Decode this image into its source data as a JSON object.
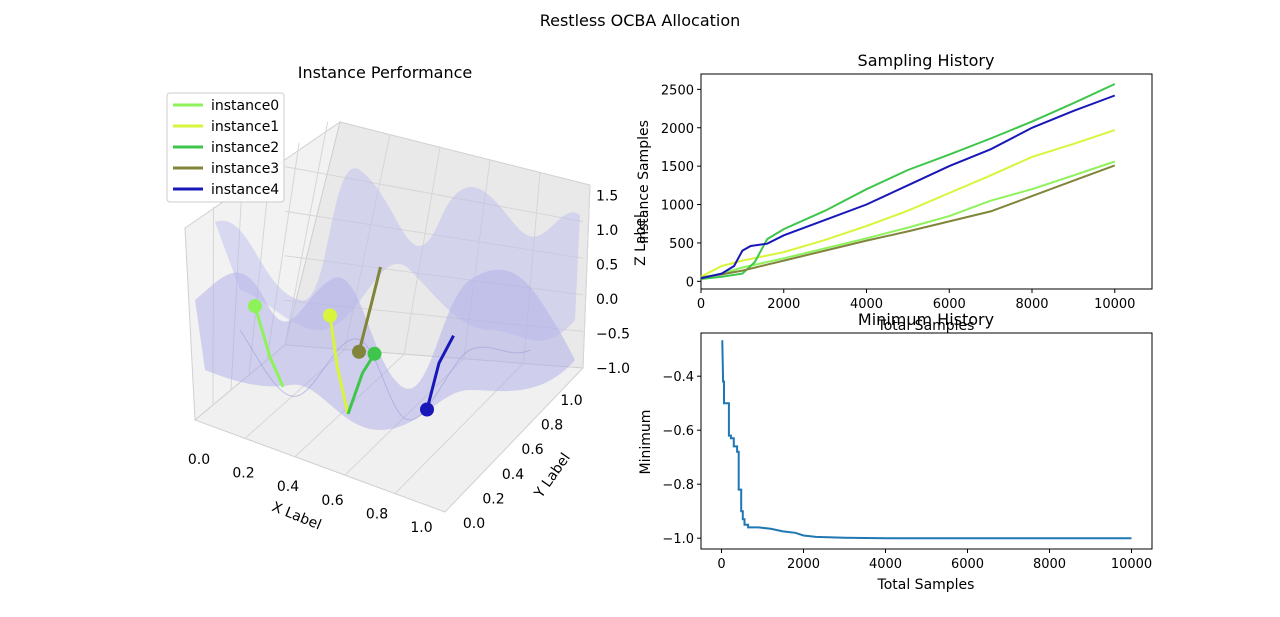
{
  "figure": {
    "suptitle": "Restless OCBA Allocation"
  },
  "chart_data": [
    {
      "type": "line",
      "panel": "3d-surface",
      "title": "Instance Performance",
      "xlabel": "X Label",
      "ylabel": "Y Label",
      "zlabel": "Z Label",
      "xticks": [
        "0.0",
        "0.2",
        "0.4",
        "0.6",
        "0.8",
        "1.0"
      ],
      "yticks": [
        "0.0",
        "0.2",
        "0.4",
        "0.6",
        "0.8",
        "1.0"
      ],
      "zticks": [
        "−1.0",
        "−0.5",
        "0.0",
        "0.5",
        "1.0",
        "1.5"
      ],
      "xlim": [
        0,
        1
      ],
      "ylim": [
        0,
        1
      ],
      "zlim": [
        -1.0,
        1.5
      ],
      "legend_position": "upper-left",
      "series": [
        {
          "name": "instance0",
          "color": "#8ef25a",
          "x": [
            0.06,
            0.12,
            0.18
          ],
          "y": [
            0.5,
            0.5,
            0.48
          ],
          "z": [
            -0.1,
            -0.6,
            -0.85
          ]
        },
        {
          "name": "instance1",
          "color": "#d8f53c",
          "x": [
            0.36,
            0.4,
            0.45
          ],
          "y": [
            0.5,
            0.47,
            0.45
          ],
          "z": [
            0.1,
            -0.4,
            -0.85
          ]
        },
        {
          "name": "instance2",
          "color": "#3ec54b",
          "x": [
            0.45,
            0.49,
            0.52
          ],
          "y": [
            0.45,
            0.5,
            0.55
          ],
          "z": [
            -0.85,
            -0.4,
            -0.2
          ]
        },
        {
          "name": "instance3",
          "color": "#80853a",
          "x": [
            0.44,
            0.47,
            0.49
          ],
          "y": [
            0.6,
            0.65,
            0.7
          ],
          "z": [
            -0.3,
            0.2,
            0.6
          ]
        },
        {
          "name": "instance4",
          "color": "#1818b8",
          "x": [
            0.73,
            0.76,
            0.8
          ],
          "y": [
            0.55,
            0.6,
            0.65
          ],
          "z": [
            -0.6,
            -0.1,
            0.2
          ]
        }
      ]
    },
    {
      "type": "line",
      "panel": "sampling-history",
      "title": "Sampling History",
      "xlabel": "Total Samples",
      "ylabel": "Instance Samples",
      "xlim": [
        0,
        10900
      ],
      "ylim": [
        -100,
        2700
      ],
      "xticks": [
        0,
        2000,
        4000,
        6000,
        8000,
        10000
      ],
      "yticks": [
        0,
        500,
        1000,
        1500,
        2000,
        2500
      ],
      "series": [
        {
          "name": "instance0",
          "color": "#8ef25a",
          "x": [
            0,
            500,
            1000,
            2000,
            3000,
            4000,
            5000,
            6000,
            7000,
            8000,
            9000,
            10000
          ],
          "y": [
            50,
            100,
            180,
            300,
            430,
            560,
            700,
            850,
            1050,
            1200,
            1380,
            1560
          ]
        },
        {
          "name": "instance1",
          "color": "#d8f53c",
          "x": [
            0,
            500,
            1000,
            2000,
            3000,
            4000,
            5000,
            6000,
            7000,
            8000,
            9000,
            10000
          ],
          "y": [
            60,
            200,
            270,
            380,
            540,
            720,
            920,
            1150,
            1380,
            1620,
            1790,
            1970
          ]
        },
        {
          "name": "instance2",
          "color": "#3ec54b",
          "x": [
            0,
            500,
            1000,
            1300,
            1600,
            2000,
            3000,
            4000,
            5000,
            6000,
            7000,
            8000,
            9000,
            10000
          ],
          "y": [
            30,
            60,
            100,
            250,
            550,
            680,
            920,
            1200,
            1450,
            1650,
            1860,
            2080,
            2320,
            2570
          ]
        },
        {
          "name": "instance3",
          "color": "#80853a",
          "x": [
            0,
            500,
            1000,
            2000,
            3000,
            4000,
            5000,
            6000,
            7000,
            8000,
            9000,
            10000
          ],
          "y": [
            50,
            90,
            140,
            270,
            400,
            530,
            650,
            780,
            910,
            1110,
            1310,
            1510
          ]
        },
        {
          "name": "instance4",
          "color": "#1818b8",
          "x": [
            0,
            500,
            800,
            1000,
            1200,
            1600,
            2000,
            3000,
            4000,
            5000,
            6000,
            7000,
            8000,
            9000,
            10000
          ],
          "y": [
            40,
            100,
            200,
            400,
            460,
            490,
            600,
            800,
            1000,
            1250,
            1500,
            1720,
            2000,
            2220,
            2420
          ]
        }
      ]
    },
    {
      "type": "line",
      "panel": "minimum-history",
      "title": "Minimum History",
      "xlabel": "Total Samples",
      "ylabel": "Minimum",
      "xlim": [
        -500,
        10500
      ],
      "ylim": [
        -1.04,
        -0.24
      ],
      "xticks": [
        0,
        2000,
        4000,
        6000,
        8000,
        10000
      ],
      "yticks": [
        -1.0,
        -0.8,
        -0.6,
        -0.4
      ],
      "series": [
        {
          "name": "",
          "color": "#1f77b4",
          "x": [
            0,
            20,
            40,
            60,
            60,
            180,
            180,
            230,
            230,
            300,
            300,
            380,
            380,
            420,
            420,
            480,
            480,
            520,
            520,
            560,
            560,
            650,
            650,
            900,
            1200,
            1500,
            1800,
            2000,
            2300,
            3000,
            4000,
            5000,
            6000,
            7000,
            8000,
            9000,
            10000
          ],
          "y": [
            -0.27,
            -0.27,
            -0.42,
            -0.42,
            -0.5,
            -0.5,
            -0.62,
            -0.62,
            -0.63,
            -0.63,
            -0.66,
            -0.66,
            -0.68,
            -0.68,
            -0.82,
            -0.82,
            -0.9,
            -0.9,
            -0.93,
            -0.93,
            -0.95,
            -0.95,
            -0.96,
            -0.96,
            -0.965,
            -0.975,
            -0.98,
            -0.99,
            -0.995,
            -0.998,
            -1.0,
            -1.0,
            -1.0,
            -1.0,
            -1.0,
            -1.0,
            -1.0
          ]
        }
      ]
    }
  ]
}
